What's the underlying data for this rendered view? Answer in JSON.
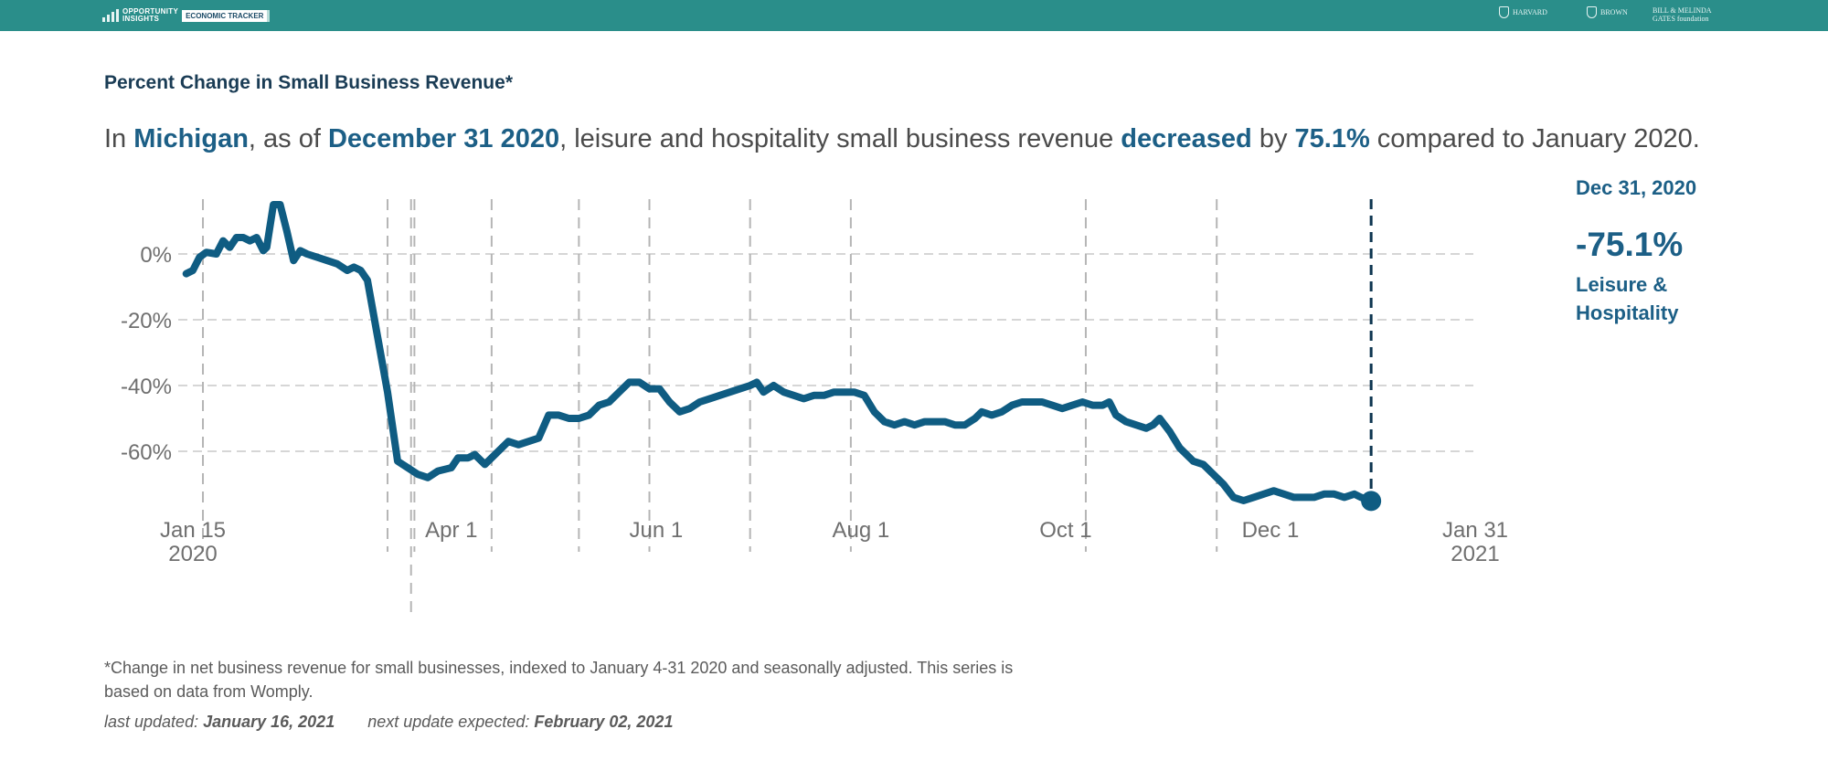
{
  "header": {
    "brand_line1": "OPPORTUNITY",
    "brand_line2": "INSIGHTS",
    "tracker_label": "ECONOMIC TRACKER",
    "partners": [
      "HARVARD",
      "BROWN",
      "BILL & MELINDA GATES foundation"
    ],
    "bar_color": "#2a8e8a"
  },
  "headline": {
    "prefix": "In ",
    "place": "Michigan",
    "mid1": ", as of ",
    "date": "December 31 2020",
    "mid2": ", leisure and hospitality small business revenue ",
    "direction": "decreased",
    "mid3": " by ",
    "value": "75.1%",
    "suffix": " compared to January 2020."
  },
  "side_label": {
    "date": "Dec 31, 2020",
    "value": "-75.1%",
    "sector": "Leisure & Hospitality"
  },
  "footnote": "*Change in net business revenue for small businesses, indexed to January 4-31 2020 and seasonally adjusted. This series is based on data from Womply.",
  "updates": {
    "last_label": "last updated:",
    "last_value": "January 16, 2021",
    "next_label": "next update expected:",
    "next_value": "February 02, 2021"
  },
  "chart_data": {
    "type": "line",
    "title": "Percent Change in Small Business Revenue*",
    "xlabel": "",
    "ylabel": "",
    "y_ticks": [
      {
        "value": 0,
        "label": "0%"
      },
      {
        "value": -20,
        "label": "-20%"
      },
      {
        "value": -40,
        "label": "-40%"
      },
      {
        "value": -60,
        "label": "-60%"
      }
    ],
    "x_ticks": [
      {
        "date": "2020-01-15",
        "lines": [
          "Jan 15",
          "2020"
        ]
      },
      {
        "date": "2020-04-01",
        "lines": [
          "Apr 1"
        ]
      },
      {
        "date": "2020-06-01",
        "lines": [
          "Jun 1"
        ]
      },
      {
        "date": "2020-08-01",
        "lines": [
          "Aug 1"
        ]
      },
      {
        "date": "2020-10-01",
        "lines": [
          "Oct 1"
        ]
      },
      {
        "date": "2020-12-01",
        "lines": [
          "Dec 1"
        ]
      },
      {
        "date": "2021-01-31",
        "lines": [
          "Jan 31",
          "2021"
        ]
      }
    ],
    "xlim": [
      "2020-01-15",
      "2021-01-31"
    ],
    "grid": "horizontal dashed",
    "event_lines": [
      "2020-01-18",
      "2020-03-13",
      "2020-03-20",
      "2020-03-21",
      "2020-04-13",
      "2020-05-09",
      "2020-05-30",
      "2020-06-29",
      "2020-07-29",
      "2020-10-07",
      "2020-11-15"
    ],
    "highlight": {
      "date": "2020-12-31",
      "value": -75.1
    },
    "series": [
      {
        "color": "#0f5c82",
        "points": [
          [
            "2020-01-13",
            -6
          ],
          [
            "2020-01-15",
            -5
          ],
          [
            "2020-01-17",
            -1
          ],
          [
            "2020-01-19",
            0.5
          ],
          [
            "2020-01-22",
            0
          ],
          [
            "2020-01-24",
            4
          ],
          [
            "2020-01-26",
            2
          ],
          [
            "2020-01-28",
            5
          ],
          [
            "2020-01-30",
            5
          ],
          [
            "2020-02-01",
            4
          ],
          [
            "2020-02-03",
            5
          ],
          [
            "2020-02-05",
            1
          ],
          [
            "2020-02-06",
            2
          ],
          [
            "2020-02-08",
            15
          ],
          [
            "2020-02-10",
            15
          ],
          [
            "2020-02-12",
            7
          ],
          [
            "2020-02-14",
            -2
          ],
          [
            "2020-02-16",
            1
          ],
          [
            "2020-02-18",
            0
          ],
          [
            "2020-02-21",
            -1
          ],
          [
            "2020-02-24",
            -2
          ],
          [
            "2020-02-27",
            -3
          ],
          [
            "2020-03-01",
            -5
          ],
          [
            "2020-03-03",
            -4
          ],
          [
            "2020-03-05",
            -5
          ],
          [
            "2020-03-07",
            -8
          ],
          [
            "2020-03-10",
            -25
          ],
          [
            "2020-03-13",
            -42
          ],
          [
            "2020-03-16",
            -63
          ],
          [
            "2020-03-19",
            -65
          ],
          [
            "2020-03-22",
            -67
          ],
          [
            "2020-03-25",
            -68
          ],
          [
            "2020-03-28",
            -66
          ],
          [
            "2020-04-01",
            -65
          ],
          [
            "2020-04-03",
            -62
          ],
          [
            "2020-04-06",
            -62
          ],
          [
            "2020-04-08",
            -61
          ],
          [
            "2020-04-11",
            -64
          ],
          [
            "2020-04-14",
            -61
          ],
          [
            "2020-04-18",
            -57
          ],
          [
            "2020-04-21",
            -58
          ],
          [
            "2020-04-24",
            -57
          ],
          [
            "2020-04-27",
            -56
          ],
          [
            "2020-04-30",
            -49
          ],
          [
            "2020-05-03",
            -49
          ],
          [
            "2020-05-06",
            -50
          ],
          [
            "2020-05-09",
            -50
          ],
          [
            "2020-05-12",
            -49
          ],
          [
            "2020-05-15",
            -46
          ],
          [
            "2020-05-18",
            -45
          ],
          [
            "2020-05-21",
            -42
          ],
          [
            "2020-05-24",
            -39
          ],
          [
            "2020-05-27",
            -39
          ],
          [
            "2020-05-30",
            -41
          ],
          [
            "2020-06-02",
            -41
          ],
          [
            "2020-06-05",
            -45
          ],
          [
            "2020-06-08",
            -48
          ],
          [
            "2020-06-11",
            -47
          ],
          [
            "2020-06-14",
            -45
          ],
          [
            "2020-06-17",
            -44
          ],
          [
            "2020-06-20",
            -43
          ],
          [
            "2020-06-23",
            -42
          ],
          [
            "2020-06-26",
            -41
          ],
          [
            "2020-06-29",
            -40
          ],
          [
            "2020-07-01",
            -39
          ],
          [
            "2020-07-03",
            -42
          ],
          [
            "2020-07-06",
            -40
          ],
          [
            "2020-07-09",
            -42
          ],
          [
            "2020-07-12",
            -43
          ],
          [
            "2020-07-15",
            -44
          ],
          [
            "2020-07-18",
            -43
          ],
          [
            "2020-07-21",
            -43
          ],
          [
            "2020-07-24",
            -42
          ],
          [
            "2020-07-27",
            -42
          ],
          [
            "2020-07-30",
            -42
          ],
          [
            "2020-08-02",
            -43
          ],
          [
            "2020-08-05",
            -48
          ],
          [
            "2020-08-08",
            -51
          ],
          [
            "2020-08-11",
            -52
          ],
          [
            "2020-08-14",
            -51
          ],
          [
            "2020-08-17",
            -52
          ],
          [
            "2020-08-20",
            -51
          ],
          [
            "2020-08-23",
            -51
          ],
          [
            "2020-08-26",
            -51
          ],
          [
            "2020-08-29",
            -52
          ],
          [
            "2020-09-01",
            -52
          ],
          [
            "2020-09-04",
            -50
          ],
          [
            "2020-09-06",
            -48
          ],
          [
            "2020-09-09",
            -49
          ],
          [
            "2020-09-12",
            -48
          ],
          [
            "2020-09-15",
            -46
          ],
          [
            "2020-09-18",
            -45
          ],
          [
            "2020-09-21",
            -45
          ],
          [
            "2020-09-24",
            -45
          ],
          [
            "2020-09-27",
            -46
          ],
          [
            "2020-09-30",
            -47
          ],
          [
            "2020-10-03",
            -46
          ],
          [
            "2020-10-06",
            -45
          ],
          [
            "2020-10-09",
            -46
          ],
          [
            "2020-10-12",
            -46
          ],
          [
            "2020-10-14",
            -45
          ],
          [
            "2020-10-16",
            -49
          ],
          [
            "2020-10-19",
            -51
          ],
          [
            "2020-10-22",
            -52
          ],
          [
            "2020-10-25",
            -53
          ],
          [
            "2020-10-27",
            -52
          ],
          [
            "2020-10-29",
            -50
          ],
          [
            "2020-11-01",
            -54
          ],
          [
            "2020-11-04",
            -59
          ],
          [
            "2020-11-08",
            -63
          ],
          [
            "2020-11-11",
            -64
          ],
          [
            "2020-11-14",
            -67
          ],
          [
            "2020-11-17",
            -70
          ],
          [
            "2020-11-20",
            -74
          ],
          [
            "2020-11-23",
            -75
          ],
          [
            "2020-11-26",
            -74
          ],
          [
            "2020-11-29",
            -73
          ],
          [
            "2020-12-02",
            -72
          ],
          [
            "2020-12-05",
            -73
          ],
          [
            "2020-12-08",
            -74
          ],
          [
            "2020-12-11",
            -74
          ],
          [
            "2020-12-14",
            -74
          ],
          [
            "2020-12-17",
            -73
          ],
          [
            "2020-12-20",
            -73
          ],
          [
            "2020-12-23",
            -74
          ],
          [
            "2020-12-26",
            -73
          ],
          [
            "2020-12-28",
            -74
          ],
          [
            "2020-12-31",
            -75.1
          ]
        ]
      }
    ]
  }
}
